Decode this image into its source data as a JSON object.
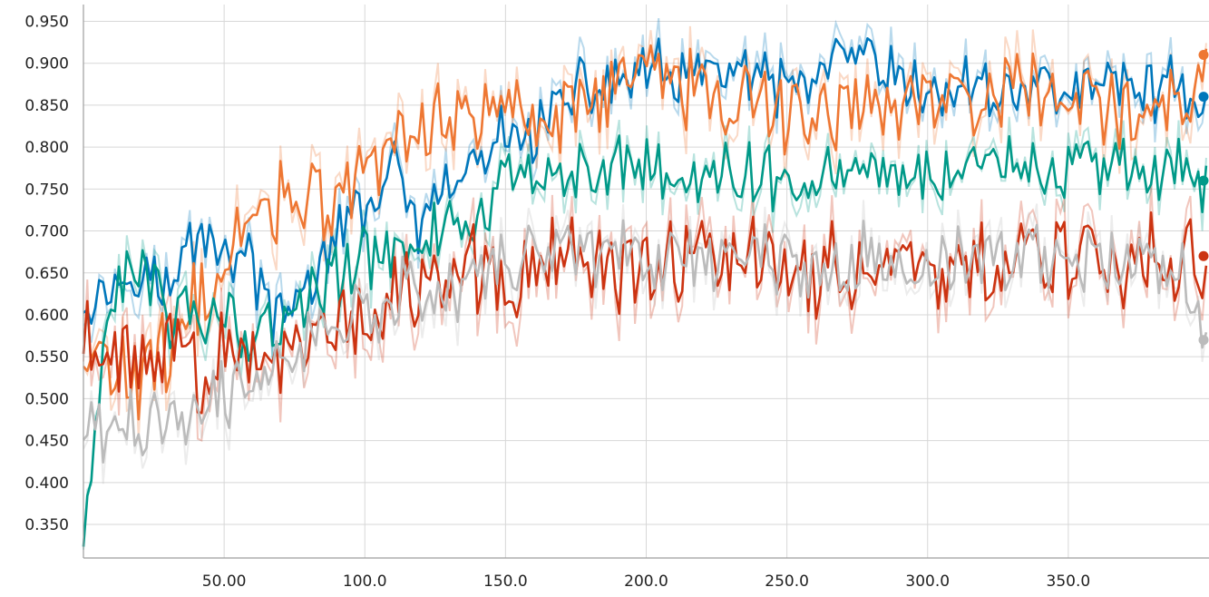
{
  "chart_data": {
    "type": "line",
    "title": "",
    "xlabel": "",
    "ylabel": "",
    "xlim": [
      0,
      400
    ],
    "ylim": [
      0.31,
      0.97
    ],
    "grid": true,
    "legend": "none",
    "x_ticks": [
      "50.00",
      "100.0",
      "150.0",
      "200.0",
      "250.0",
      "300.0",
      "350.0"
    ],
    "y_ticks": [
      "0.950",
      "0.900",
      "0.850",
      "0.800",
      "0.750",
      "0.700",
      "0.650",
      "0.600",
      "0.550",
      "0.500",
      "0.450",
      "0.400",
      "0.350"
    ],
    "series": [
      {
        "color": "#0077bb",
        "x": [
          0,
          10,
          20,
          30,
          40,
          50,
          60,
          70,
          80,
          90,
          100,
          110,
          120,
          130,
          140,
          150,
          160,
          170,
          180,
          190,
          200,
          210,
          220,
          230,
          240,
          250,
          260,
          270,
          280,
          290,
          300,
          310,
          320,
          330,
          340,
          350,
          360,
          370,
          380,
          390,
          400
        ],
        "y": [
          0.63,
          0.63,
          0.67,
          0.62,
          0.7,
          0.68,
          0.66,
          0.58,
          0.64,
          0.69,
          0.73,
          0.77,
          0.7,
          0.75,
          0.78,
          0.81,
          0.82,
          0.85,
          0.87,
          0.88,
          0.89,
          0.88,
          0.88,
          0.9,
          0.87,
          0.87,
          0.88,
          0.9,
          0.9,
          0.87,
          0.86,
          0.87,
          0.87,
          0.87,
          0.87,
          0.87,
          0.87,
          0.88,
          0.87,
          0.87,
          0.86
        ]
      },
      {
        "color": "#ee7733",
        "x": [
          0,
          10,
          20,
          30,
          40,
          50,
          60,
          70,
          80,
          90,
          100,
          110,
          120,
          130,
          140,
          150,
          160,
          170,
          180,
          190,
          200,
          210,
          220,
          230,
          240,
          250,
          260,
          270,
          280,
          290,
          300,
          310,
          320,
          330,
          340,
          350,
          360,
          370,
          380,
          390,
          400
        ],
        "y": [
          0.54,
          0.54,
          0.52,
          0.55,
          0.62,
          0.66,
          0.7,
          0.75,
          0.74,
          0.73,
          0.77,
          0.8,
          0.82,
          0.84,
          0.84,
          0.85,
          0.85,
          0.84,
          0.86,
          0.88,
          0.89,
          0.88,
          0.86,
          0.87,
          0.85,
          0.84,
          0.84,
          0.85,
          0.85,
          0.85,
          0.86,
          0.86,
          0.86,
          0.86,
          0.86,
          0.85,
          0.86,
          0.85,
          0.85,
          0.86,
          0.91
        ]
      },
      {
        "color": "#009988",
        "x": [
          0,
          10,
          20,
          30,
          40,
          50,
          60,
          70,
          80,
          90,
          100,
          110,
          120,
          130,
          140,
          150,
          160,
          170,
          180,
          190,
          200,
          210,
          220,
          230,
          240,
          250,
          260,
          270,
          280,
          290,
          300,
          310,
          320,
          330,
          340,
          350,
          360,
          370,
          380,
          390,
          400
        ],
        "y": [
          0.33,
          0.62,
          0.66,
          0.6,
          0.6,
          0.61,
          0.58,
          0.59,
          0.62,
          0.64,
          0.67,
          0.68,
          0.7,
          0.7,
          0.72,
          0.75,
          0.77,
          0.78,
          0.77,
          0.78,
          0.78,
          0.77,
          0.76,
          0.77,
          0.77,
          0.77,
          0.77,
          0.77,
          0.77,
          0.77,
          0.77,
          0.77,
          0.78,
          0.77,
          0.77,
          0.77,
          0.78,
          0.77,
          0.77,
          0.77,
          0.76
        ]
      },
      {
        "color": "#cc3311",
        "x": [
          0,
          10,
          20,
          30,
          40,
          50,
          60,
          70,
          80,
          90,
          100,
          110,
          120,
          130,
          140,
          150,
          160,
          170,
          180,
          190,
          200,
          210,
          220,
          230,
          240,
          250,
          260,
          270,
          280,
          290,
          300,
          310,
          320,
          330,
          340,
          350,
          360,
          370,
          380,
          390,
          400
        ],
        "y": [
          0.57,
          0.57,
          0.53,
          0.55,
          0.54,
          0.55,
          0.56,
          0.57,
          0.58,
          0.6,
          0.61,
          0.63,
          0.64,
          0.65,
          0.65,
          0.66,
          0.66,
          0.67,
          0.67,
          0.66,
          0.66,
          0.66,
          0.66,
          0.66,
          0.66,
          0.66,
          0.65,
          0.66,
          0.66,
          0.66,
          0.66,
          0.66,
          0.66,
          0.66,
          0.66,
          0.66,
          0.66,
          0.65,
          0.66,
          0.66,
          0.67
        ]
      },
      {
        "color": "#bbbbbb",
        "x": [
          0,
          10,
          20,
          30,
          40,
          50,
          60,
          70,
          80,
          90,
          100,
          110,
          120,
          130,
          140,
          150,
          160,
          170,
          180,
          190,
          200,
          210,
          220,
          230,
          240,
          250,
          260,
          270,
          280,
          290,
          300,
          310,
          320,
          330,
          340,
          350,
          360,
          370,
          380,
          390,
          400
        ],
        "y": [
          0.47,
          0.47,
          0.46,
          0.47,
          0.5,
          0.51,
          0.53,
          0.55,
          0.57,
          0.59,
          0.6,
          0.61,
          0.63,
          0.64,
          0.65,
          0.66,
          0.67,
          0.67,
          0.68,
          0.68,
          0.67,
          0.67,
          0.67,
          0.67,
          0.67,
          0.67,
          0.66,
          0.66,
          0.67,
          0.66,
          0.66,
          0.67,
          0.66,
          0.67,
          0.66,
          0.66,
          0.66,
          0.66,
          0.66,
          0.66,
          0.57
        ]
      }
    ]
  }
}
